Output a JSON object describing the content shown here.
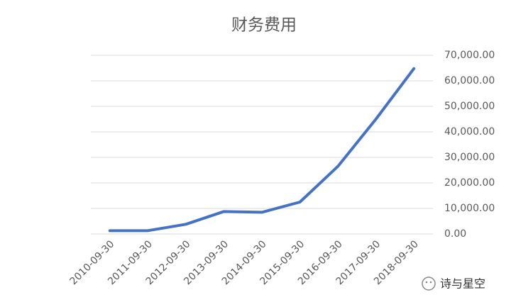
{
  "chart_data": {
    "type": "line",
    "title": "财务费用",
    "categories": [
      "2010-09-30",
      "2011-09-30",
      "2012-09-30",
      "2013-09-30",
      "2014-09-30",
      "2015-09-30",
      "2016-09-30",
      "2017-09-30",
      "2018-09-30"
    ],
    "values": [
      1300,
      1300,
      3800,
      8800,
      8500,
      12500,
      26500,
      45000,
      64800
    ],
    "color": "#4472c4",
    "ylim": [
      0,
      70000
    ],
    "yticks": [
      {
        "value": 0,
        "label": "0.00"
      },
      {
        "value": 10000,
        "label": "10,000.00"
      },
      {
        "value": 20000,
        "label": "20,000.00"
      },
      {
        "value": 30000,
        "label": "30,000.00"
      },
      {
        "value": 40000,
        "label": "40,000.00"
      },
      {
        "value": 50000,
        "label": "50,000.00"
      },
      {
        "value": 60000,
        "label": "60,000.00"
      },
      {
        "value": 70000,
        "label": "70,000.00"
      }
    ],
    "grid": true,
    "y_axis_side": "right"
  },
  "watermark": "诗与星空"
}
